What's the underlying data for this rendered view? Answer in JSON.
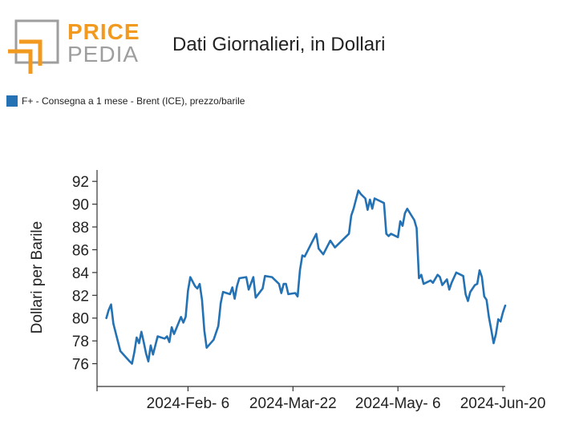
{
  "logo": {
    "word_top": "PRICE",
    "word_bottom": "PEDIA",
    "accent": "#F29A1F",
    "grey": "#9E9E9E"
  },
  "chart_data": {
    "type": "line",
    "title": "Dati Giornalieri, in Dollari",
    "ylabel": "Dollari per Barile",
    "xlabel": "",
    "ylim": [
      74,
      93
    ],
    "yticks": [
      76,
      78,
      80,
      82,
      84,
      86,
      88,
      90,
      92
    ],
    "x_range": [
      "2023-12-29",
      "2024-06-21"
    ],
    "xticks": [
      {
        "date": "2024-02-06",
        "label": "2024-Feb- 6"
      },
      {
        "date": "2024-03-22",
        "label": "2024-Mar-22"
      },
      {
        "date": "2024-05-06",
        "label": "2024-May- 6"
      },
      {
        "date": "2024-06-20",
        "label": "2024-Jun-20"
      }
    ],
    "grid": false,
    "legend_position": "top-left",
    "series": [
      {
        "name": "F+ - Consegna a 1 mese - Brent (ICE), prezzo/barile",
        "color": "#2472B4",
        "points": [
          [
            "2024-01-02",
            80.0
          ],
          [
            "2024-01-03",
            80.7
          ],
          [
            "2024-01-04",
            81.2
          ],
          [
            "2024-01-05",
            79.5
          ],
          [
            "2024-01-08",
            77.1
          ],
          [
            "2024-01-12",
            76.2
          ],
          [
            "2024-01-13",
            76.0
          ],
          [
            "2024-01-14",
            77.0
          ],
          [
            "2024-01-15",
            78.3
          ],
          [
            "2024-01-16",
            77.8
          ],
          [
            "2024-01-17",
            78.8
          ],
          [
            "2024-01-18",
            77.9
          ],
          [
            "2024-01-19",
            76.9
          ],
          [
            "2024-01-20",
            76.2
          ],
          [
            "2024-01-21",
            77.6
          ],
          [
            "2024-01-22",
            76.8
          ],
          [
            "2024-01-24",
            78.4
          ],
          [
            "2024-01-27",
            78.2
          ],
          [
            "2024-01-28",
            78.4
          ],
          [
            "2024-01-29",
            77.9
          ],
          [
            "2024-01-30",
            79.2
          ],
          [
            "2024-01-31",
            78.6
          ],
          [
            "2024-02-03",
            80.1
          ],
          [
            "2024-02-04",
            79.6
          ],
          [
            "2024-02-05",
            80.1
          ],
          [
            "2024-02-06",
            82.4
          ],
          [
            "2024-02-07",
            83.6
          ],
          [
            "2024-02-09",
            82.8
          ],
          [
            "2024-02-10",
            82.6
          ],
          [
            "2024-02-11",
            83.0
          ],
          [
            "2024-02-12",
            81.6
          ],
          [
            "2024-02-13",
            78.9
          ],
          [
            "2024-02-14",
            77.4
          ],
          [
            "2024-02-17",
            78.1
          ],
          [
            "2024-02-19",
            79.3
          ],
          [
            "2024-02-20",
            81.3
          ],
          [
            "2024-02-21",
            82.3
          ],
          [
            "2024-02-24",
            82.1
          ],
          [
            "2024-02-25",
            82.7
          ],
          [
            "2024-02-26",
            81.7
          ],
          [
            "2024-02-27",
            82.8
          ],
          [
            "2024-02-28",
            83.5
          ],
          [
            "2024-03-02",
            83.6
          ],
          [
            "2024-03-03",
            82.5
          ],
          [
            "2024-03-05",
            83.6
          ],
          [
            "2024-03-06",
            81.8
          ],
          [
            "2024-03-09",
            82.6
          ],
          [
            "2024-03-10",
            83.7
          ],
          [
            "2024-03-13",
            83.6
          ],
          [
            "2024-03-16",
            83.0
          ],
          [
            "2024-03-17",
            82.2
          ],
          [
            "2024-03-18",
            83.0
          ],
          [
            "2024-03-19",
            83.0
          ],
          [
            "2024-03-20",
            82.1
          ],
          [
            "2024-03-23",
            82.2
          ],
          [
            "2024-03-24",
            81.9
          ],
          [
            "2024-03-25",
            84.2
          ],
          [
            "2024-03-26",
            85.5
          ],
          [
            "2024-03-27",
            85.4
          ],
          [
            "2024-03-30",
            86.6
          ],
          [
            "2024-04-01",
            87.4
          ],
          [
            "2024-04-02",
            86.1
          ],
          [
            "2024-04-04",
            85.6
          ],
          [
            "2024-04-06",
            86.4
          ],
          [
            "2024-04-07",
            86.8
          ],
          [
            "2024-04-09",
            86.2
          ],
          [
            "2024-04-12",
            86.8
          ],
          [
            "2024-04-15",
            87.4
          ],
          [
            "2024-04-16",
            89.0
          ],
          [
            "2024-04-17",
            89.6
          ],
          [
            "2024-04-19",
            91.2
          ],
          [
            "2024-04-20",
            90.9
          ],
          [
            "2024-04-22",
            90.5
          ],
          [
            "2024-04-23",
            89.5
          ],
          [
            "2024-04-24",
            90.4
          ],
          [
            "2024-04-25",
            89.6
          ],
          [
            "2024-04-26",
            90.5
          ],
          [
            "2024-04-30",
            90.1
          ],
          [
            "2024-05-01",
            87.4
          ],
          [
            "2024-05-02",
            87.2
          ],
          [
            "2024-05-03",
            87.4
          ],
          [
            "2024-05-06",
            87.1
          ],
          [
            "2024-05-07",
            88.5
          ],
          [
            "2024-05-08",
            88.1
          ],
          [
            "2024-05-09",
            89.2
          ],
          [
            "2024-05-10",
            89.6
          ],
          [
            "2024-05-13",
            88.6
          ],
          [
            "2024-05-14",
            87.9
          ],
          [
            "2024-05-15",
            83.5
          ],
          [
            "2024-05-16",
            83.8
          ],
          [
            "2024-05-17",
            83.0
          ],
          [
            "2024-05-20",
            83.3
          ],
          [
            "2024-05-21",
            83.1
          ],
          [
            "2024-05-23",
            83.8
          ],
          [
            "2024-05-24",
            83.6
          ],
          [
            "2024-05-25",
            82.9
          ],
          [
            "2024-05-27",
            83.4
          ],
          [
            "2024-05-28",
            82.5
          ],
          [
            "2024-05-29",
            83.1
          ],
          [
            "2024-05-31",
            84.0
          ],
          [
            "2024-06-03",
            83.7
          ],
          [
            "2024-06-04",
            82.1
          ],
          [
            "2024-06-05",
            81.5
          ],
          [
            "2024-06-06",
            82.3
          ],
          [
            "2024-06-08",
            82.9
          ],
          [
            "2024-06-09",
            83.0
          ],
          [
            "2024-06-10",
            84.2
          ],
          [
            "2024-06-11",
            83.6
          ],
          [
            "2024-06-12",
            81.9
          ],
          [
            "2024-06-13",
            81.6
          ],
          [
            "2024-06-14",
            80.1
          ],
          [
            "2024-06-15",
            79.0
          ],
          [
            "2024-06-16",
            77.8
          ],
          [
            "2024-06-17",
            78.6
          ],
          [
            "2024-06-18",
            79.9
          ],
          [
            "2024-06-19",
            79.7
          ],
          [
            "2024-06-20",
            80.5
          ],
          [
            "2024-06-21",
            81.1
          ]
        ]
      }
    ]
  }
}
